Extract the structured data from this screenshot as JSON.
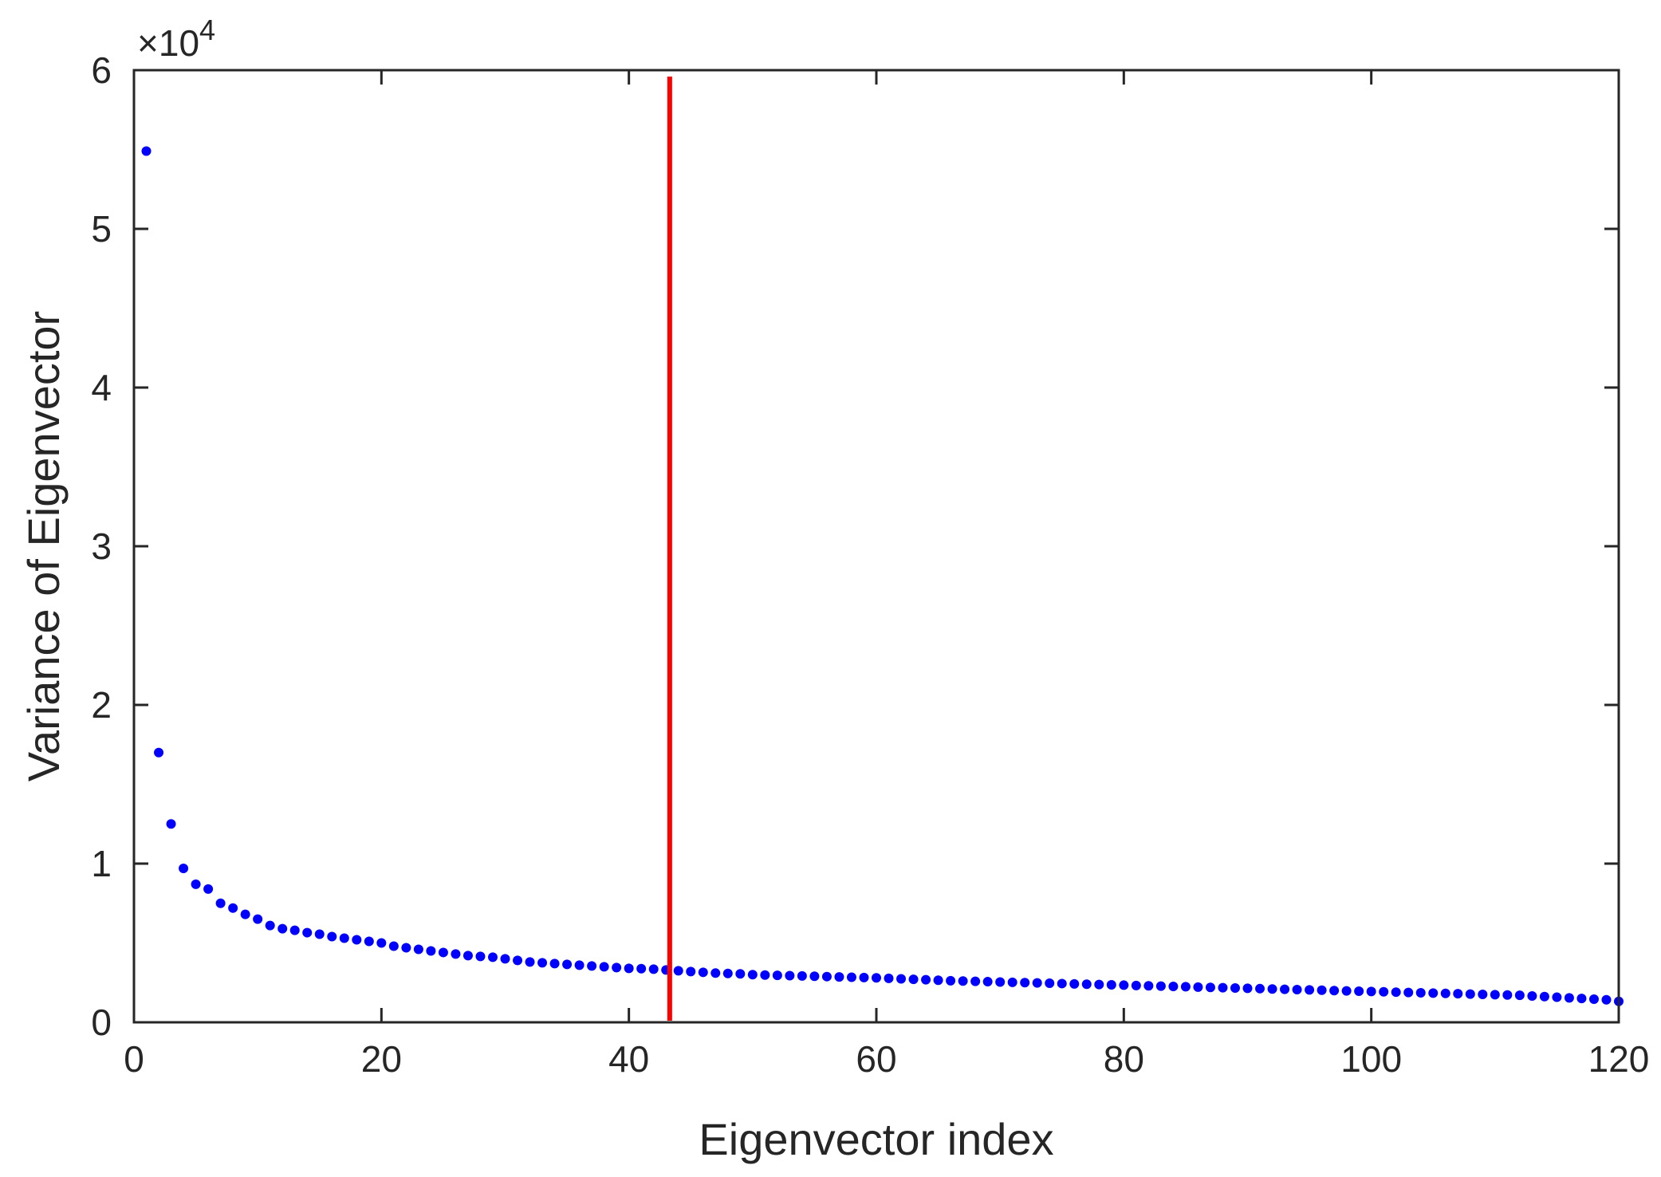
{
  "chart_data": {
    "type": "scatter",
    "title": "",
    "xlabel": "Eigenvector index",
    "ylabel": "Variance of Eigenvector",
    "xlim": [
      0,
      120
    ],
    "ylim": [
      0,
      60000
    ],
    "x_ticks": [
      0,
      20,
      40,
      60,
      80,
      100,
      120
    ],
    "x_tick_labels": [
      "0",
      "20",
      "40",
      "60",
      "80",
      "100",
      "120"
    ],
    "y_ticks": [
      0,
      10000,
      20000,
      30000,
      40000,
      50000,
      60000
    ],
    "y_tick_labels": [
      "0",
      "1",
      "2",
      "3",
      "4",
      "5",
      "6"
    ],
    "y_exponent_label": "×10",
    "y_exponent_power": "4",
    "grid": false,
    "marker_color": "#0000ff",
    "threshold_color": "#ff0000",
    "threshold_x": 43.3,
    "series": [
      {
        "x": [
          1,
          2,
          3,
          4,
          5,
          6,
          7,
          8,
          9,
          10,
          11,
          12,
          13,
          14,
          15,
          16,
          17,
          18,
          19,
          20,
          21,
          22,
          23,
          24,
          25,
          26,
          27,
          28,
          29,
          30,
          31,
          32,
          33,
          34,
          35,
          36,
          37,
          38,
          39,
          40,
          41,
          42,
          43,
          44,
          45,
          46,
          47,
          48,
          49,
          50,
          51,
          52,
          53,
          54,
          55,
          56,
          57,
          58,
          59,
          60,
          61,
          62,
          63,
          64,
          65,
          66,
          67,
          68,
          69,
          70,
          71,
          72,
          73,
          74,
          75,
          76,
          77,
          78,
          79,
          80,
          81,
          82,
          83,
          84,
          85,
          86,
          87,
          88,
          89,
          90,
          91,
          92,
          93,
          94,
          95,
          96,
          97,
          98,
          99,
          100,
          101,
          102,
          103,
          104,
          105,
          106,
          107,
          108,
          109,
          110,
          111,
          112,
          113,
          114,
          115,
          116,
          117,
          118,
          119,
          120
        ],
        "y": [
          54900,
          17000,
          12500,
          9700,
          8700,
          8400,
          7500,
          7200,
          6800,
          6500,
          6100,
          5900,
          5800,
          5650,
          5550,
          5400,
          5300,
          5200,
          5100,
          5000,
          4800,
          4700,
          4600,
          4500,
          4400,
          4300,
          4200,
          4150,
          4100,
          4000,
          3900,
          3800,
          3750,
          3700,
          3650,
          3600,
          3550,
          3500,
          3450,
          3400,
          3380,
          3350,
          3300,
          3250,
          3200,
          3150,
          3100,
          3080,
          3050,
          3000,
          2980,
          2960,
          2940,
          2920,
          2900,
          2880,
          2860,
          2840,
          2820,
          2800,
          2770,
          2740,
          2710,
          2680,
          2650,
          2620,
          2600,
          2580,
          2560,
          2540,
          2520,
          2500,
          2480,
          2460,
          2440,
          2420,
          2400,
          2380,
          2360,
          2340,
          2320,
          2300,
          2280,
          2260,
          2240,
          2220,
          2200,
          2180,
          2160,
          2140,
          2120,
          2100,
          2080,
          2060,
          2040,
          2020,
          2000,
          1980,
          1960,
          1940,
          1920,
          1900,
          1880,
          1860,
          1840,
          1820,
          1800,
          1780,
          1760,
          1740,
          1720,
          1700,
          1660,
          1620,
          1580,
          1540,
          1500,
          1460,
          1420,
          1320
        ]
      }
    ]
  }
}
